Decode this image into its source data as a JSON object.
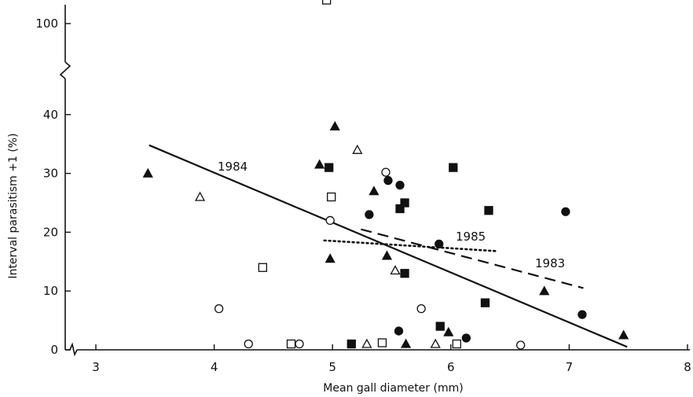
{
  "chart_data": {
    "type": "scatter",
    "xlabel": "Mean gall diameter (mm)",
    "ylabel": "Interval parasitism +1 (%)",
    "xlim": [
      2.75,
      8.05
    ],
    "x_ticks": [
      "3",
      "4",
      "5",
      "6",
      "7",
      "8"
    ],
    "y_ticks_lower": [
      "0",
      "10",
      "20",
      "30",
      "40"
    ],
    "y_ticks_upper": [
      "100"
    ],
    "y_axis_break": "between 40 and 100",
    "x_axis_break": "near origin",
    "grid": false,
    "series": [
      {
        "marker": "filled-triangle",
        "points": [
          [
            3.44,
            30
          ],
          [
            4.89,
            31.5
          ],
          [
            4.98,
            15.5
          ],
          [
            5.02,
            38
          ],
          [
            5.35,
            27
          ],
          [
            5.46,
            16
          ],
          [
            5.62,
            1
          ],
          [
            5.98,
            3
          ],
          [
            6.79,
            10
          ],
          [
            7.46,
            2.5
          ]
        ]
      },
      {
        "marker": "open-triangle",
        "points": [
          [
            3.88,
            26
          ],
          [
            5.21,
            34
          ],
          [
            5.29,
            1
          ],
          [
            5.53,
            13.5
          ],
          [
            5.87,
            1
          ]
        ]
      },
      {
        "marker": "filled-square",
        "points": [
          [
            4.97,
            31
          ],
          [
            5.16,
            1
          ],
          [
            5.57,
            24
          ],
          [
            5.61,
            25
          ],
          [
            5.61,
            13
          ],
          [
            5.91,
            4
          ],
          [
            6.02,
            31
          ],
          [
            6.29,
            8
          ],
          [
            6.32,
            23.7
          ]
        ]
      },
      {
        "marker": "open-square",
        "points": [
          [
            4.41,
            14
          ],
          [
            4.65,
            1
          ],
          [
            4.99,
            26
          ],
          [
            5.42,
            1.2
          ],
          [
            6.05,
            1
          ],
          [
            4.95,
            104
          ]
        ]
      },
      {
        "marker": "filled-circle",
        "points": [
          [
            5.31,
            23
          ],
          [
            5.47,
            28.8
          ],
          [
            5.57,
            28
          ],
          [
            5.56,
            3.2
          ],
          [
            5.9,
            18
          ],
          [
            6.13,
            2
          ],
          [
            6.97,
            23.5
          ],
          [
            7.11,
            6
          ]
        ]
      },
      {
        "marker": "open-circle",
        "points": [
          [
            4.04,
            7
          ],
          [
            4.29,
            1
          ],
          [
            4.72,
            1
          ],
          [
            4.98,
            22
          ],
          [
            5.45,
            30.2
          ],
          [
            5.75,
            7
          ],
          [
            6.59,
            0.8
          ]
        ]
      }
    ],
    "fit_lines": [
      {
        "name": "1984",
        "style": "solid",
        "x": [
          3.45,
          7.49
        ],
        "y": [
          34.8,
          0.5
        ]
      },
      {
        "name": "1983",
        "style": "dashed",
        "x": [
          5.24,
          7.12
        ],
        "y": [
          20.5,
          10.5
        ]
      },
      {
        "name": "1985",
        "style": "dotted",
        "x": [
          4.93,
          6.38
        ],
        "y": [
          18.6,
          16.8
        ]
      }
    ]
  }
}
